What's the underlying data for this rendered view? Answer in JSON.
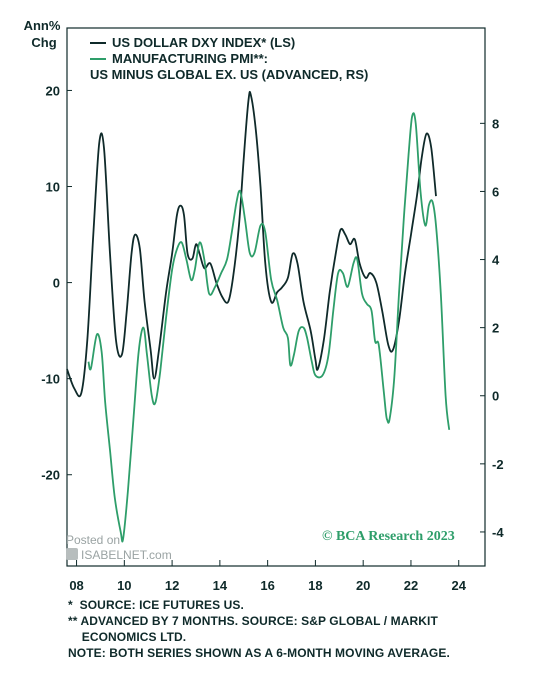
{
  "chart_data": {
    "type": "line",
    "y_left_label": [
      "Ann%",
      "Chg"
    ],
    "x_ticks": [
      "08",
      "10",
      "12",
      "14",
      "16",
      "18",
      "20",
      "22",
      "24"
    ],
    "x_tick_values": [
      2008,
      2010,
      2012,
      2014,
      2016,
      2018,
      2020,
      2022,
      2024
    ],
    "xlim": [
      2007.6,
      2025.1
    ],
    "y_left_ticks": [
      20,
      10,
      0,
      -10,
      -20
    ],
    "y_left_lim": [
      -29.5,
      26.5
    ],
    "y_right_ticks": [
      8,
      6,
      4,
      2,
      0,
      -2,
      -4
    ],
    "y_right_lim": [
      -5.0,
      10.8
    ],
    "grid": false,
    "legend_position": "top-left",
    "series": [
      {
        "name": "US DOLLAR DXY INDEX* (LS)",
        "axis": "left",
        "color": "#0f2a2a",
        "points": [
          [
            2007.6,
            -9.0
          ],
          [
            2007.9,
            -11.0
          ],
          [
            2008.2,
            -11.5
          ],
          [
            2008.45,
            -6.0
          ],
          [
            2008.7,
            5.0
          ],
          [
            2008.95,
            14.5
          ],
          [
            2009.15,
            14.0
          ],
          [
            2009.4,
            3.0
          ],
          [
            2009.65,
            -6.0
          ],
          [
            2009.9,
            -7.5
          ],
          [
            2010.1,
            -3.0
          ],
          [
            2010.3,
            3.0
          ],
          [
            2010.45,
            5.0
          ],
          [
            2010.65,
            3.5
          ],
          [
            2010.85,
            -2.0
          ],
          [
            2011.1,
            -7.0
          ],
          [
            2011.25,
            -10.0
          ],
          [
            2011.45,
            -7.0
          ],
          [
            2011.75,
            -1.0
          ],
          [
            2012.0,
            3.0
          ],
          [
            2012.2,
            7.0
          ],
          [
            2012.35,
            8.0
          ],
          [
            2012.5,
            7.0
          ],
          [
            2012.65,
            3.0
          ],
          [
            2012.85,
            2.5
          ],
          [
            2013.0,
            4.0
          ],
          [
            2013.15,
            3.0
          ],
          [
            2013.35,
            1.5
          ],
          [
            2013.6,
            2.0
          ],
          [
            2013.85,
            0.0
          ],
          [
            2014.1,
            -1.5
          ],
          [
            2014.35,
            -2.0
          ],
          [
            2014.55,
            0.5
          ],
          [
            2014.8,
            6.0
          ],
          [
            2015.0,
            13.0
          ],
          [
            2015.2,
            19.0
          ],
          [
            2015.3,
            19.5
          ],
          [
            2015.5,
            16.0
          ],
          [
            2015.7,
            10.0
          ],
          [
            2015.9,
            2.0
          ],
          [
            2016.15,
            -2.0
          ],
          [
            2016.4,
            -1.0
          ],
          [
            2016.6,
            -0.5
          ],
          [
            2016.85,
            0.5
          ],
          [
            2017.05,
            3.0
          ],
          [
            2017.25,
            2.0
          ],
          [
            2017.5,
            -2.0
          ],
          [
            2017.8,
            -5.0
          ],
          [
            2018.0,
            -8.0
          ],
          [
            2018.1,
            -9.0
          ],
          [
            2018.35,
            -6.0
          ],
          [
            2018.6,
            -1.0
          ],
          [
            2018.85,
            3.0
          ],
          [
            2019.05,
            5.5
          ],
          [
            2019.25,
            5.0
          ],
          [
            2019.45,
            4.0
          ],
          [
            2019.65,
            4.5
          ],
          [
            2019.85,
            2.0
          ],
          [
            2020.1,
            0.5
          ],
          [
            2020.3,
            1.0
          ],
          [
            2020.55,
            0.0
          ],
          [
            2020.8,
            -3.0
          ],
          [
            2021.05,
            -6.5
          ],
          [
            2021.25,
            -7.0
          ],
          [
            2021.5,
            -4.0
          ],
          [
            2021.75,
            1.0
          ],
          [
            2022.0,
            5.0
          ],
          [
            2022.25,
            9.0
          ],
          [
            2022.45,
            13.0
          ],
          [
            2022.65,
            15.5
          ],
          [
            2022.85,
            14.0
          ],
          [
            2023.05,
            9.0
          ]
        ]
      },
      {
        "name": "MANUFACTURING PMI**: US MINUS GLOBAL EX. US (ADVANCED, RS)",
        "axis": "right",
        "color": "#2e9e6a",
        "points": [
          [
            2008.5,
            1.0
          ],
          [
            2008.6,
            0.8
          ],
          [
            2008.85,
            1.8
          ],
          [
            2009.05,
            1.3
          ],
          [
            2009.2,
            -0.2
          ],
          [
            2009.4,
            -1.6
          ],
          [
            2009.6,
            -3.0
          ],
          [
            2009.85,
            -4.0
          ],
          [
            2009.95,
            -4.2
          ],
          [
            2010.15,
            -2.8
          ],
          [
            2010.4,
            -0.5
          ],
          [
            2010.6,
            1.3
          ],
          [
            2010.8,
            2.0
          ],
          [
            2010.95,
            1.2
          ],
          [
            2011.15,
            0.0
          ],
          [
            2011.3,
            -0.2
          ],
          [
            2011.5,
            0.7
          ],
          [
            2011.75,
            2.3
          ],
          [
            2012.0,
            3.7
          ],
          [
            2012.2,
            4.3
          ],
          [
            2012.4,
            4.5
          ],
          [
            2012.6,
            4.0
          ],
          [
            2012.8,
            3.4
          ],
          [
            2012.95,
            3.7
          ],
          [
            2013.15,
            4.5
          ],
          [
            2013.35,
            4.0
          ],
          [
            2013.55,
            3.0
          ],
          [
            2013.8,
            3.2
          ],
          [
            2014.05,
            3.6
          ],
          [
            2014.3,
            4.0
          ],
          [
            2014.5,
            4.8
          ],
          [
            2014.7,
            5.7
          ],
          [
            2014.85,
            6.0
          ],
          [
            2015.05,
            5.2
          ],
          [
            2015.25,
            4.2
          ],
          [
            2015.45,
            4.2
          ],
          [
            2015.7,
            5.0
          ],
          [
            2015.9,
            4.8
          ],
          [
            2016.15,
            3.4
          ],
          [
            2016.4,
            2.8
          ],
          [
            2016.65,
            2.0
          ],
          [
            2016.85,
            1.7
          ],
          [
            2016.95,
            0.9
          ],
          [
            2017.1,
            1.2
          ],
          [
            2017.3,
            1.9
          ],
          [
            2017.5,
            2.0
          ],
          [
            2017.65,
            1.7
          ],
          [
            2017.85,
            1.0
          ],
          [
            2018.0,
            0.6
          ],
          [
            2018.3,
            0.6
          ],
          [
            2018.55,
            1.2
          ],
          [
            2018.75,
            2.5
          ],
          [
            2018.95,
            3.6
          ],
          [
            2019.15,
            3.6
          ],
          [
            2019.35,
            3.2
          ],
          [
            2019.6,
            3.9
          ],
          [
            2019.75,
            4.0
          ],
          [
            2019.95,
            3.0
          ],
          [
            2020.15,
            2.7
          ],
          [
            2020.35,
            2.5
          ],
          [
            2020.5,
            1.6
          ],
          [
            2020.65,
            1.5
          ],
          [
            2020.85,
            0.2
          ],
          [
            2020.95,
            -0.5
          ],
          [
            2021.0,
            -0.7
          ],
          [
            2021.1,
            -0.7
          ],
          [
            2021.3,
            0.5
          ],
          [
            2021.5,
            3.0
          ],
          [
            2021.7,
            5.2
          ],
          [
            2021.9,
            7.1
          ],
          [
            2022.05,
            8.2
          ],
          [
            2022.2,
            8.0
          ],
          [
            2022.4,
            6.0
          ],
          [
            2022.6,
            5.0
          ],
          [
            2022.75,
            5.6
          ],
          [
            2022.9,
            5.7
          ],
          [
            2023.05,
            5.0
          ],
          [
            2023.25,
            3.0
          ],
          [
            2023.45,
            0.0
          ],
          [
            2023.6,
            -1.0
          ]
        ]
      }
    ]
  },
  "legend": {
    "dxy_label": "US DOLLAR DXY INDEX* (LS)",
    "pmi_label_line1": "MANUFACTURING PMI**:",
    "pmi_label_line2": "US MINUS GLOBAL EX. US (ADVANCED, RS)"
  },
  "credit": "© BCA Research 2023",
  "watermark": {
    "line1": "Posted on",
    "line2": "ISABELNET.com"
  },
  "notes": [
    "*  SOURCE: ICE FUTURES US.",
    "** ADVANCED BY 7 MONTHS. SOURCE: S&P GLOBAL / MARKIT",
    "    ECONOMICS LTD.",
    "NOTE: BOTH SERIES SHOWN AS A 6-MONTH MOVING AVERAGE."
  ],
  "colors": {
    "frame": "#0f2a2a",
    "dxy": "#0f2a2a",
    "pmi": "#2e9e6a"
  }
}
